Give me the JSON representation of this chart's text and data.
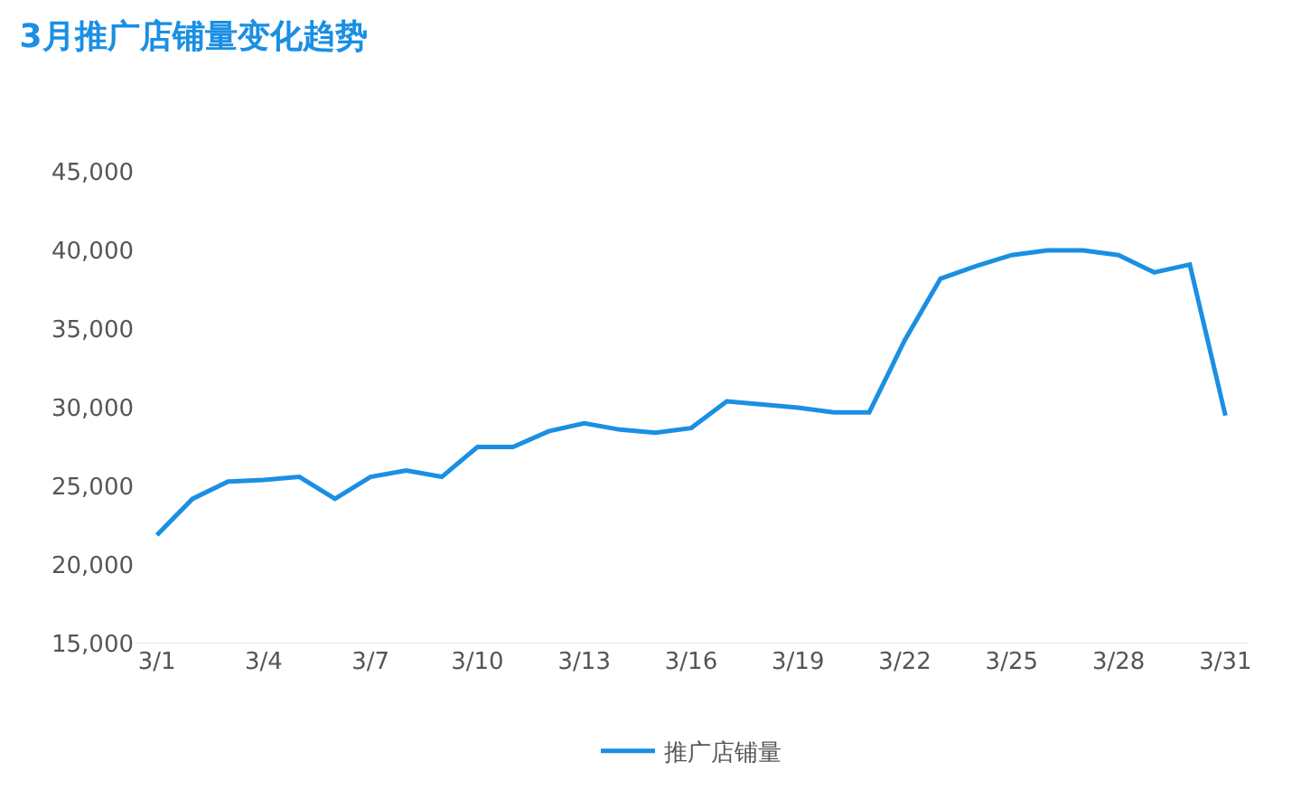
{
  "chart_data": {
    "type": "line",
    "title": "3月推广店铺量变化趋势",
    "categories": [
      "3/1",
      null,
      null,
      "3/4",
      null,
      null,
      "3/7",
      null,
      null,
      "3/10",
      null,
      null,
      "3/13",
      null,
      null,
      "3/16",
      null,
      null,
      "3/19",
      null,
      null,
      "3/22",
      null,
      null,
      "3/25",
      null,
      null,
      "3/28",
      null,
      null,
      "3/31"
    ],
    "series": [
      {
        "name": "推广店铺量",
        "color": "#1a8fe3",
        "values": [
          21900,
          24200,
          25300,
          25400,
          25600,
          24200,
          25600,
          26000,
          25600,
          27500,
          27500,
          28500,
          29000,
          28600,
          28400,
          28700,
          30400,
          30200,
          30000,
          29700,
          29700,
          34300,
          38200,
          39000,
          39700,
          40000,
          40000,
          39700,
          38600,
          39100,
          29500
        ]
      }
    ],
    "ylim": [
      15000,
      45000
    ],
    "yticks": [
      {
        "value": 15000,
        "label": "15,000"
      },
      {
        "value": 20000,
        "label": "20,000"
      },
      {
        "value": 25000,
        "label": "25,000"
      },
      {
        "value": 30000,
        "label": "30,000"
      },
      {
        "value": 35000,
        "label": "35,000"
      },
      {
        "value": 40000,
        "label": "40,000"
      },
      {
        "value": 45000,
        "label": "45,000"
      }
    ],
    "legend": "bottom",
    "marker": "none",
    "line_style": "solid"
  }
}
